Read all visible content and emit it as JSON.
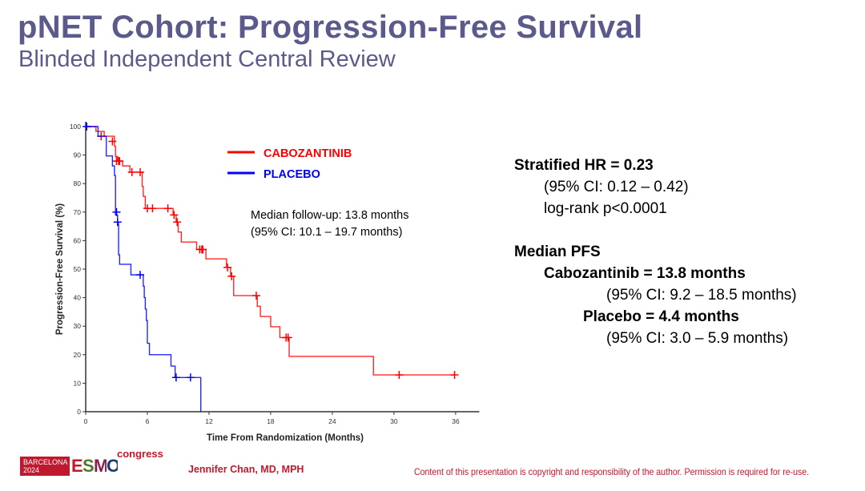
{
  "slide": {
    "title": "pNET Cohort: Progression-Free Survival",
    "subtitle": "Blinded Independent Central Review"
  },
  "stats": {
    "hr_line": "Stratified HR = 0.23",
    "hr_ci": "(95% CI: 0.12 – 0.42)",
    "logrank": "log-rank p<0.0001",
    "median_pfs_heading": "Median PFS",
    "cabo_median": "Cabozantinib = 13.8 months",
    "cabo_ci": "(95% CI: 9.2 – 18.5 months)",
    "placebo_median": "Placebo = 4.4 months",
    "placebo_ci": "(95% CI: 3.0 – 5.9 months)"
  },
  "footer": {
    "logo_city": "BARCELONA",
    "logo_year": "2024",
    "logo_letters": [
      "E",
      "S",
      "M",
      "O"
    ],
    "logo_congress": "congress",
    "author": "Jennifer Chan, MD, MPH",
    "copyright": "Content of this presentation is copyright and responsibility of the author. Permission is required for re-use."
  },
  "colors": {
    "title": "#5a5a8c",
    "cabozantinib": "#ff0000",
    "placebo": "#0000ff",
    "footer_red": "#c0182d",
    "esmo_e": "#c0182d",
    "esmo_s": "#4f7a2a",
    "esmo_m": "#8b1f4e",
    "esmo_o": "#1d3d6e"
  },
  "chart_data": {
    "type": "line",
    "subtype": "kaplan-meier step",
    "title": "",
    "xlabel": "Time From Randomization (Months)",
    "ylabel": "Progression-Free Survival (%)",
    "xlim": [
      0,
      38.3
    ],
    "ylim": [
      0,
      101.7
    ],
    "xticks": [
      0,
      6,
      12,
      18,
      24,
      30,
      36
    ],
    "yticks": [
      0,
      10,
      20,
      30,
      40,
      50,
      60,
      70,
      80,
      90,
      100
    ],
    "grid": false,
    "legend_position": "top-center",
    "annotation": {
      "line1": "Median follow-up: 13.8 months",
      "line2": "(95% CI: 10.1 – 19.7 months)"
    },
    "series": [
      {
        "name": "CABOZANTINIB",
        "color": "#ff0000",
        "steps": [
          [
            0,
            100
          ],
          [
            1.0,
            98.3
          ],
          [
            1.8,
            96.6
          ],
          [
            2.8,
            93.1
          ],
          [
            2.9,
            89.5
          ],
          [
            3.1,
            87.9
          ],
          [
            3.6,
            86.2
          ],
          [
            4.3,
            84.0
          ],
          [
            5.5,
            79.0
          ],
          [
            5.6,
            75.5
          ],
          [
            5.8,
            71.3
          ],
          [
            8.5,
            69.0
          ],
          [
            8.8,
            66.5
          ],
          [
            9.0,
            63.0
          ],
          [
            9.3,
            59.5
          ],
          [
            10.8,
            56.9
          ],
          [
            11.7,
            53.6
          ],
          [
            13.7,
            50.6
          ],
          [
            14.1,
            47.5
          ],
          [
            14.4,
            40.7
          ],
          [
            16.7,
            37.0
          ],
          [
            17.0,
            33.4
          ],
          [
            18.0,
            29.8
          ],
          [
            18.9,
            26.0
          ],
          [
            19.8,
            19.4
          ],
          [
            28.0,
            12.9
          ],
          [
            35.9,
            12.9
          ]
        ],
        "censored": [
          [
            1.5,
            96.6
          ],
          [
            2.6,
            94.8
          ],
          [
            3.0,
            87.9
          ],
          [
            3.2,
            87.9
          ],
          [
            3.3,
            87.9
          ],
          [
            4.5,
            84.0
          ],
          [
            5.3,
            84.0
          ],
          [
            6.0,
            71.3
          ],
          [
            6.5,
            71.3
          ],
          [
            8.0,
            71.3
          ],
          [
            8.6,
            69.0
          ],
          [
            8.9,
            66.5
          ],
          [
            11.1,
            56.9
          ],
          [
            11.3,
            56.9
          ],
          [
            11.4,
            56.9
          ],
          [
            13.8,
            50.6
          ],
          [
            14.2,
            47.5
          ],
          [
            16.6,
            40.7
          ],
          [
            19.5,
            26.0
          ],
          [
            19.7,
            26.0
          ],
          [
            30.5,
            12.9
          ],
          [
            35.9,
            12.9
          ]
        ]
      },
      {
        "name": "PLACEBO",
        "color": "#0000ff",
        "steps": [
          [
            0,
            100
          ],
          [
            1.2,
            96.6
          ],
          [
            2.0,
            89.7
          ],
          [
            2.6,
            86.2
          ],
          [
            2.8,
            82.8
          ],
          [
            2.9,
            69.0
          ],
          [
            3.1,
            66.0
          ],
          [
            3.2,
            55.0
          ],
          [
            3.3,
            51.7
          ],
          [
            4.4,
            48.0
          ],
          [
            5.6,
            44.0
          ],
          [
            5.7,
            40.0
          ],
          [
            5.8,
            36.0
          ],
          [
            5.9,
            32.0
          ],
          [
            6.0,
            24.0
          ],
          [
            6.2,
            20.0
          ],
          [
            8.3,
            16.0
          ],
          [
            8.7,
            12.0
          ],
          [
            11.2,
            0
          ]
        ],
        "censored": [
          [
            0.1,
            100
          ],
          [
            3.0,
            70.0
          ],
          [
            3.1,
            66.5
          ],
          [
            5.3,
            48.0
          ],
          [
            8.8,
            12.0
          ],
          [
            10.2,
            12.0
          ]
        ]
      }
    ]
  }
}
